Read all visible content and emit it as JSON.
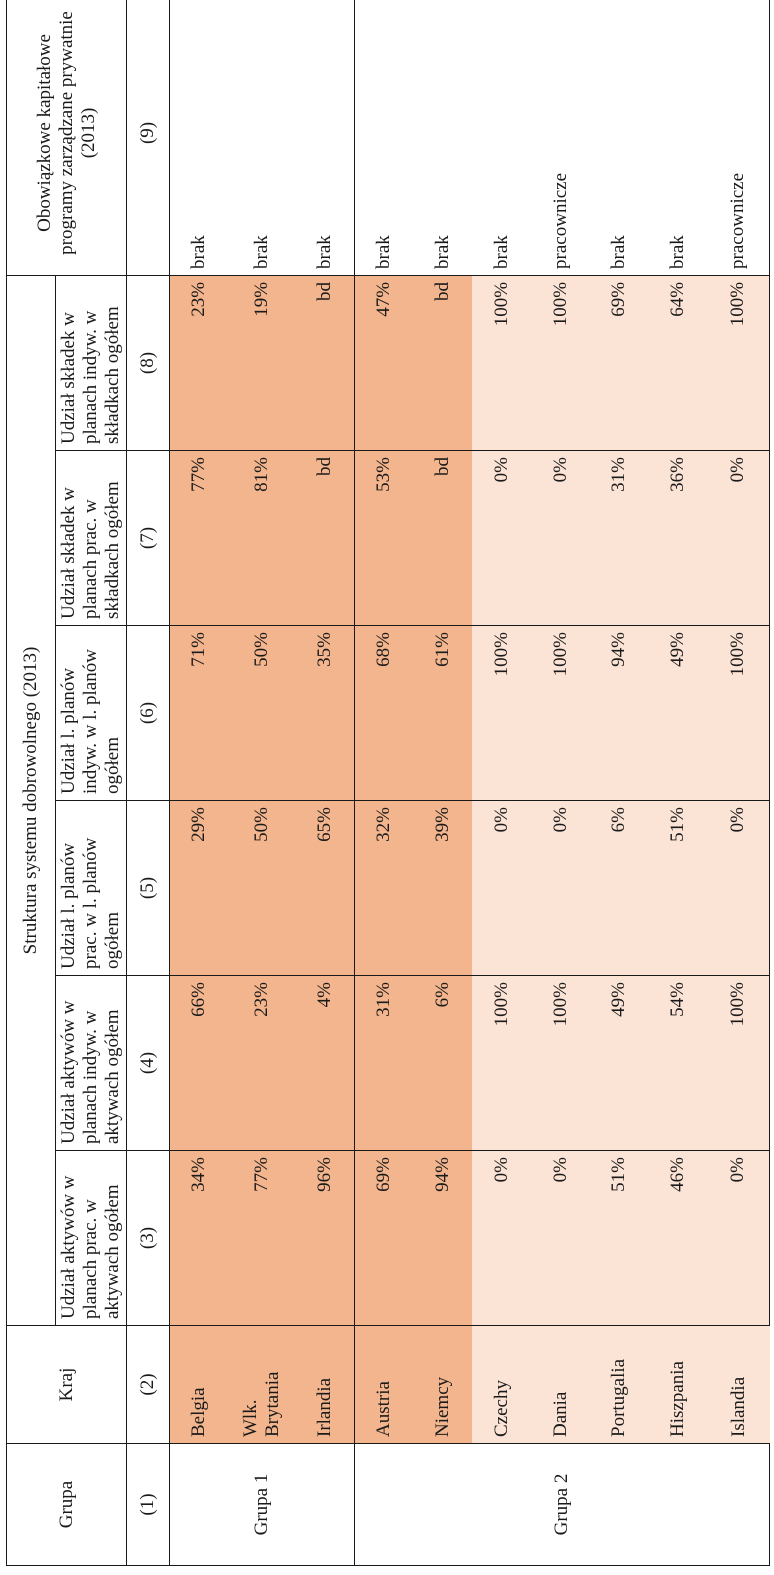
{
  "table": {
    "header": {
      "grupa": "Grupa",
      "kraj": "Kraj",
      "struktura": "Struktura systemu dobrowolnego (2013)",
      "obowiazkowe": "Obowiązkowe kapitałowe programy zarządzane prywatnie (2013)",
      "sub": [
        "Udział aktywów w planach prac. w aktywach ogółem",
        "Udział aktywów w planach indyw. w aktywach ogółem",
        "Udział l. planów prac. w l. planów ogółem",
        "Udział l. planów indyw. w l. planów ogółem",
        "Udział składek w planach prac. w składkach ogółem",
        "Udział składek w planach indyw. w składkach ogółem"
      ],
      "numbers": [
        "(1)",
        "(2)",
        "(3)",
        "(4)",
        "(5)",
        "(6)",
        "(7)",
        "(8)",
        "(9)"
      ]
    },
    "groups": [
      {
        "name": "Grupa 1",
        "rows": [
          {
            "kraj": "Belgia",
            "v": [
              "34%",
              "66%",
              "29%",
              "71%",
              "77%",
              "23%"
            ],
            "obow": "brak",
            "shade": "dark"
          },
          {
            "kraj": "Wlk. Brytania",
            "v": [
              "77%",
              "23%",
              "50%",
              "50%",
              "81%",
              "19%"
            ],
            "obow": "brak",
            "shade": "dark"
          },
          {
            "kraj": "Irlandia",
            "v": [
              "96%",
              "4%",
              "65%",
              "35%",
              "bd",
              "bd"
            ],
            "obow": "brak",
            "shade": "dark"
          }
        ]
      },
      {
        "name": "Grupa 2",
        "rows": [
          {
            "kraj": "Austria",
            "v": [
              "69%",
              "31%",
              "32%",
              "68%",
              "53%",
              "47%"
            ],
            "obow": "brak",
            "shade": "dark"
          },
          {
            "kraj": "Niemcy",
            "v": [
              "94%",
              "6%",
              "39%",
              "61%",
              "bd",
              "bd"
            ],
            "obow": "brak",
            "shade": "dark"
          },
          {
            "kraj": "Czechy",
            "v": [
              "0%",
              "100%",
              "0%",
              "100%",
              "0%",
              "100%"
            ],
            "obow": "brak",
            "shade": "light"
          },
          {
            "kraj": "Dania",
            "v": [
              "0%",
              "100%",
              "0%",
              "100%",
              "0%",
              "100%"
            ],
            "obow": "pracownicze",
            "shade": "light"
          },
          {
            "kraj": "Portugalia",
            "v": [
              "51%",
              "49%",
              "6%",
              "94%",
              "31%",
              "69%"
            ],
            "obow": "brak",
            "shade": "light"
          },
          {
            "kraj": "Hiszpania",
            "v": [
              "46%",
              "54%",
              "51%",
              "49%",
              "36%",
              "64%"
            ],
            "obow": "brak",
            "shade": "light"
          },
          {
            "kraj": "Islandia",
            "v": [
              "0%",
              "100%",
              "0%",
              "100%",
              "0%",
              "100%"
            ],
            "obow": "pracownicze",
            "shade": "light"
          }
        ]
      }
    ],
    "colors": {
      "dark_shade": "#f3b58d",
      "light_shade": "#fbe3d5",
      "border": "#1a1a1a"
    }
  }
}
